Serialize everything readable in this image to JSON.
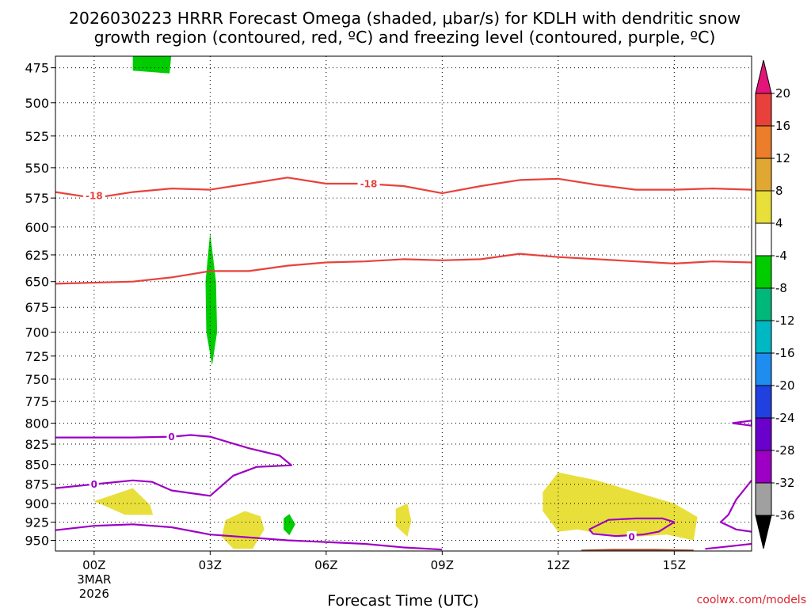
{
  "title": {
    "line1": "2026030223 HRRR Forecast Omega (shaded, μbar/s) for KDLH with dendritic snow",
    "line2": "growth region (contoured, red, ºC) and freezing level (contoured, purple, ºC)"
  },
  "credit": "coolwx.com/models",
  "colors": {
    "dgz_contour": "#e8413c",
    "freezing_contour": "#9d00c4",
    "rising_shade": "#00cc00",
    "sinking_shade": "#e8df3a",
    "ground": "#a0522d",
    "grid": "#000000"
  },
  "chart_data": {
    "type": "heatmap",
    "title": "2026030223 HRRR Forecast Omega (shaded, μbar/s) for KDLH with dendritic snow growth region (contoured, red, ºC) and freezing level (contoured, purple, ºC)",
    "xlabel": "Forecast Time (UTC)",
    "ylabel": "",
    "x_unit": "hours after 00Z 3 Mar 2026",
    "xlim": [
      -1,
      17
    ],
    "ylim_hpa": [
      467,
      965
    ],
    "y_scale": "log-pressure",
    "grid": true,
    "x_ticks": [
      {
        "hour": 0,
        "label": "00Z",
        "date_line1": "3MAR",
        "date_line2": "2026"
      },
      {
        "hour": 3,
        "label": "03Z"
      },
      {
        "hour": 6,
        "label": "06Z"
      },
      {
        "hour": 9,
        "label": "09Z"
      },
      {
        "hour": 12,
        "label": "12Z"
      },
      {
        "hour": 15,
        "label": "15Z"
      }
    ],
    "y_ticks": [
      475,
      500,
      525,
      550,
      575,
      600,
      625,
      650,
      675,
      700,
      725,
      750,
      775,
      800,
      825,
      850,
      875,
      900,
      925,
      950
    ],
    "colorbar": {
      "unit": "μbar/s",
      "labels": [
        "20",
        "16",
        "12",
        "8",
        "4",
        "-4",
        "-8",
        "-12",
        "-16",
        "-20",
        "-24",
        "-28",
        "-32",
        "-36"
      ],
      "bins": [
        {
          "range": [
            "20",
            "max"
          ],
          "color": "#e3157a"
        },
        {
          "range": [
            "16",
            "20"
          ],
          "color": "#e8413c"
        },
        {
          "range": [
            "12",
            "16"
          ],
          "color": "#ec7d2a"
        },
        {
          "range": [
            "8",
            "12"
          ],
          "color": "#e0a832"
        },
        {
          "range": [
            "4",
            "8"
          ],
          "color": "#e8df3a"
        },
        {
          "range": [
            "-4",
            "4"
          ],
          "color": "#ffffff"
        },
        {
          "range": [
            "-8",
            "-4"
          ],
          "color": "#00cc00"
        },
        {
          "range": [
            "-12",
            "-8"
          ],
          "color": "#00b87a"
        },
        {
          "range": [
            "-16",
            "-12"
          ],
          "color": "#00b8c4"
        },
        {
          "range": [
            "-20",
            "-16"
          ],
          "color": "#1f8cf0"
        },
        {
          "range": [
            "-24",
            "-20"
          ],
          "color": "#2040e0"
        },
        {
          "range": [
            "-28",
            "-24"
          ],
          "color": "#6a00cc"
        },
        {
          "range": [
            "-32",
            "-28"
          ],
          "color": "#9d00c4"
        },
        {
          "range": [
            "-36",
            "-32"
          ],
          "color": "#a0a0a0"
        },
        {
          "range": [
            "min",
            "-36"
          ],
          "color": "#000000"
        }
      ]
    },
    "contours": [
      {
        "kind": "dgz-upper",
        "level": -18,
        "color": "#e8413c",
        "points": [
          [
            -1,
            570
          ],
          [
            0,
            575
          ],
          [
            1,
            570
          ],
          [
            2,
            567
          ],
          [
            3,
            568
          ],
          [
            4,
            563
          ],
          [
            5,
            558
          ],
          [
            6,
            563
          ],
          [
            7,
            563
          ],
          [
            8,
            565
          ],
          [
            9,
            571
          ],
          [
            10,
            565
          ],
          [
            11,
            560
          ],
          [
            12,
            559
          ],
          [
            13,
            564
          ],
          [
            14,
            568
          ],
          [
            15,
            568
          ],
          [
            16,
            567
          ],
          [
            17,
            568
          ]
        ],
        "labels": [
          {
            "x": 0,
            "y": 573,
            "text": "-18"
          },
          {
            "x": 7.1,
            "y": 563,
            "text": "-18"
          }
        ]
      },
      {
        "kind": "dgz-lower",
        "level": -12,
        "color": "#e8413c",
        "points": [
          [
            -1,
            652
          ],
          [
            1,
            650
          ],
          [
            2,
            646
          ],
          [
            3,
            640
          ],
          [
            4,
            640
          ],
          [
            5,
            635
          ],
          [
            6,
            632
          ],
          [
            7,
            631
          ],
          [
            8,
            629
          ],
          [
            9,
            630
          ],
          [
            10,
            629
          ],
          [
            11,
            624
          ],
          [
            12,
            627
          ],
          [
            13,
            629
          ],
          [
            14,
            631
          ],
          [
            15,
            633
          ],
          [
            16,
            631
          ],
          [
            17,
            632
          ]
        ],
        "labels": []
      },
      {
        "kind": "freezing-upper",
        "level": 0,
        "color": "#9d00c4",
        "points": [
          [
            -1,
            817
          ],
          [
            0,
            817
          ],
          [
            1,
            817
          ],
          [
            2,
            816
          ],
          [
            2.5,
            814
          ],
          [
            3,
            816
          ],
          [
            3.5,
            823
          ],
          [
            4,
            830
          ],
          [
            4.8,
            839
          ],
          [
            5.1,
            851
          ],
          [
            4.2,
            853
          ],
          [
            3.6,
            864
          ],
          [
            3,
            890
          ],
          [
            2,
            883
          ],
          [
            1.5,
            872
          ],
          [
            1,
            870
          ],
          [
            0,
            875
          ],
          [
            -1,
            880
          ]
        ],
        "labels": [
          {
            "x": 2,
            "y": 816,
            "text": "0"
          },
          {
            "x": 0,
            "y": 875,
            "text": "0"
          }
        ]
      },
      {
        "kind": "freezing-lower",
        "level": 0,
        "color": "#9d00c4",
        "points": [
          [
            -1,
            936
          ],
          [
            0,
            930
          ],
          [
            1,
            928
          ],
          [
            2,
            932
          ],
          [
            3,
            942
          ],
          [
            5,
            950
          ],
          [
            7,
            955
          ],
          [
            8,
            960
          ],
          [
            9,
            963
          ]
        ],
        "labels": []
      },
      {
        "kind": "freezing-right-top",
        "level": 0,
        "color": "#9d00c4",
        "points": [
          [
            16.5,
            800
          ],
          [
            17,
            797
          ],
          [
            17,
            803
          ],
          [
            16.5,
            800
          ]
        ],
        "labels": []
      },
      {
        "kind": "freezing-right-bottom",
        "level": 0,
        "color": "#9d00c4",
        "points": [
          [
            17,
            870
          ],
          [
            16.6,
            895
          ],
          [
            16.4,
            915
          ],
          [
            16.2,
            925
          ],
          [
            16.6,
            935
          ],
          [
            17,
            938
          ]
        ],
        "labels": []
      },
      {
        "kind": "freezing-surface",
        "level": 0,
        "color": "#9d00c4",
        "points": [
          [
            15.8,
            962
          ],
          [
            16.5,
            958
          ],
          [
            17,
            955
          ]
        ],
        "labels": []
      },
      {
        "kind": "freezing-loop",
        "level": 0,
        "color": "#9d00c4",
        "points": [
          [
            12.8,
            935
          ],
          [
            13.3,
            922
          ],
          [
            14,
            920
          ],
          [
            14.7,
            920
          ],
          [
            15,
            925
          ],
          [
            14.6,
            938
          ],
          [
            14.2,
            942
          ],
          [
            13.5,
            944
          ],
          [
            12.9,
            941
          ],
          [
            12.8,
            935
          ]
        ],
        "labels": [
          {
            "x": 13.9,
            "y": 945,
            "text": "0"
          }
        ]
      }
    ],
    "shaded_regions": [
      {
        "kind": "rising",
        "omega_range": [
          "-8",
          "-4"
        ],
        "color": "#00cc00",
        "points": [
          [
            1,
            465
          ],
          [
            2,
            465
          ],
          [
            1.95,
            479
          ],
          [
            1,
            477
          ]
        ]
      },
      {
        "kind": "rising",
        "omega_range": [
          "-8",
          "-4"
        ],
        "color": "#00cc00",
        "points": [
          [
            3,
            605
          ],
          [
            3.15,
            650
          ],
          [
            3.18,
            700
          ],
          [
            3.05,
            735
          ],
          [
            2.9,
            700
          ],
          [
            2.88,
            650
          ]
        ]
      },
      {
        "kind": "rising",
        "omega_range": [
          "-8",
          "-4"
        ],
        "color": "#00cc00",
        "points": [
          [
            4.9,
            920
          ],
          [
            5.05,
            914
          ],
          [
            5.2,
            928
          ],
          [
            5.05,
            943
          ],
          [
            4.9,
            935
          ]
        ]
      },
      {
        "kind": "sinking",
        "omega_range": [
          "4",
          "8"
        ],
        "color": "#e8df3a",
        "points": [
          [
            0,
            897
          ],
          [
            1,
            880
          ],
          [
            1.45,
            902
          ],
          [
            1.52,
            915
          ],
          [
            0.8,
            915
          ],
          [
            0,
            897
          ]
        ]
      },
      {
        "kind": "sinking",
        "omega_range": [
          "4",
          "8"
        ],
        "color": "#e8df3a",
        "points": [
          [
            3.4,
            922
          ],
          [
            3.9,
            910
          ],
          [
            4.3,
            917
          ],
          [
            4.4,
            935
          ],
          [
            4.1,
            962
          ],
          [
            3.6,
            962
          ],
          [
            3.3,
            945
          ]
        ]
      },
      {
        "kind": "sinking",
        "omega_range": [
          "4",
          "8"
        ],
        "color": "#e8df3a",
        "points": [
          [
            7.8,
            907
          ],
          [
            8.1,
            900
          ],
          [
            8.2,
            923
          ],
          [
            8.1,
            945
          ],
          [
            7.8,
            930
          ]
        ]
      },
      {
        "kind": "sinking",
        "omega_range": [
          "4",
          "8"
        ],
        "color": "#e8df3a",
        "points": [
          [
            11.6,
            885
          ],
          [
            12,
            860
          ],
          [
            13,
            870
          ],
          [
            14,
            885
          ],
          [
            15,
            900
          ],
          [
            15.6,
            918
          ],
          [
            15.5,
            950
          ],
          [
            14.8,
            942
          ],
          [
            14,
            945
          ],
          [
            13,
            940
          ],
          [
            12.5,
            935
          ],
          [
            12,
            938
          ],
          [
            11.6,
            910
          ]
        ]
      }
    ],
    "ground": {
      "color": "#a0522d",
      "points": [
        [
          -1,
          967
        ],
        [
          17,
          967
        ],
        [
          17,
          970
        ],
        [
          -1,
          970
        ]
      ],
      "bump": [
        [
          12.6,
          963
        ],
        [
          13.4,
          962
        ],
        [
          14.5,
          962
        ],
        [
          15.5,
          963
        ]
      ]
    }
  }
}
